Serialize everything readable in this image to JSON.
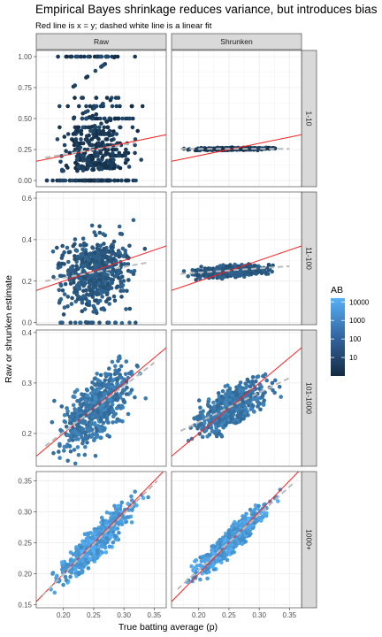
{
  "title": "Empirical Bayes shrinkage reduces variance, but introduces bias",
  "subtitle": "Red line is x = y; dashed white line is a linear fit",
  "chart_data": {
    "type": "scatter",
    "facet_columns": [
      "Raw",
      "Shrunken"
    ],
    "facet_rows": [
      "1-10",
      "11-100",
      "101-1000",
      "1000+"
    ],
    "xlabel": "True batting average (p)",
    "ylabel": "Raw or shrunken estimate",
    "xlim": [
      0.155,
      0.37
    ],
    "x_ticks": [
      0.2,
      0.25,
      0.3,
      0.35
    ],
    "x_tick_labels": [
      "0.20",
      "0.25",
      "0.30",
      "0.35"
    ],
    "rows": [
      {
        "name": "1-10",
        "ylim": [
          -0.05,
          1.05
        ],
        "y_ticks": [
          0,
          0.25,
          0.5,
          0.75,
          1.0
        ],
        "y_tick_labels": [
          "0.00",
          "0.25",
          "0.50",
          "0.75",
          "1.00"
        ],
        "raw_fit": {
          "x": [
            0.17,
            0.32
          ],
          "y": [
            0.185,
            0.305
          ]
        },
        "shrunken_fit": {
          "x": [
            0.17,
            0.35
          ],
          "y": [
            0.255,
            0.255
          ]
        }
      },
      {
        "name": "11-100",
        "ylim": [
          -0.01,
          0.63
        ],
        "y_ticks": [
          0,
          0.2,
          0.4,
          0.6
        ],
        "y_tick_labels": [
          "0.0",
          "0.2",
          "0.4",
          "0.6"
        ],
        "raw_fit": {
          "x": [
            0.17,
            0.34
          ],
          "y": [
            0.2,
            0.29
          ]
        },
        "shrunken_fit": {
          "x": [
            0.17,
            0.35
          ],
          "y": [
            0.235,
            0.272
          ]
        }
      },
      {
        "name": "101-1000",
        "ylim": [
          0.135,
          0.405
        ],
        "y_ticks": [
          0.2,
          0.3,
          0.4
        ],
        "y_tick_labels": [
          "0.2",
          "0.3",
          "0.4"
        ],
        "raw_fit": {
          "x": [
            0.17,
            0.35
          ],
          "y": [
            0.175,
            0.34
          ]
        },
        "shrunken_fit": {
          "x": [
            0.17,
            0.35
          ],
          "y": [
            0.205,
            0.31
          ]
        }
      },
      {
        "name": "1000+",
        "ylim": [
          0.145,
          0.365
        ],
        "y_ticks": [
          0.15,
          0.2,
          0.25,
          0.3,
          0.35
        ],
        "y_tick_labels": [
          "0.15",
          "0.20",
          "0.25",
          "0.30",
          "0.35"
        ],
        "raw_fit": {
          "x": [
            0.165,
            0.355
          ],
          "y": [
            0.165,
            0.35
          ]
        },
        "shrunken_fit": {
          "x": [
            0.165,
            0.355
          ],
          "y": [
            0.175,
            0.345
          ]
        }
      }
    ],
    "legend": {
      "title": "AB",
      "position": "right",
      "scale": "log10",
      "labels": [
        "10000",
        "1000",
        "100",
        "10"
      ],
      "values": [
        10000,
        1000,
        100,
        10
      ],
      "range": [
        1,
        16000
      ],
      "colors": [
        "#132b43",
        "#56b1f7"
      ]
    },
    "colors": {
      "identity_line": "#ff2020",
      "fit_line": "#bbbbbb",
      "panel_grid": "#ebebeb",
      "strip_fill": "#d9d9d9",
      "point_low": "#132b43",
      "point_high": "#56b1f7"
    },
    "grid": true
  }
}
